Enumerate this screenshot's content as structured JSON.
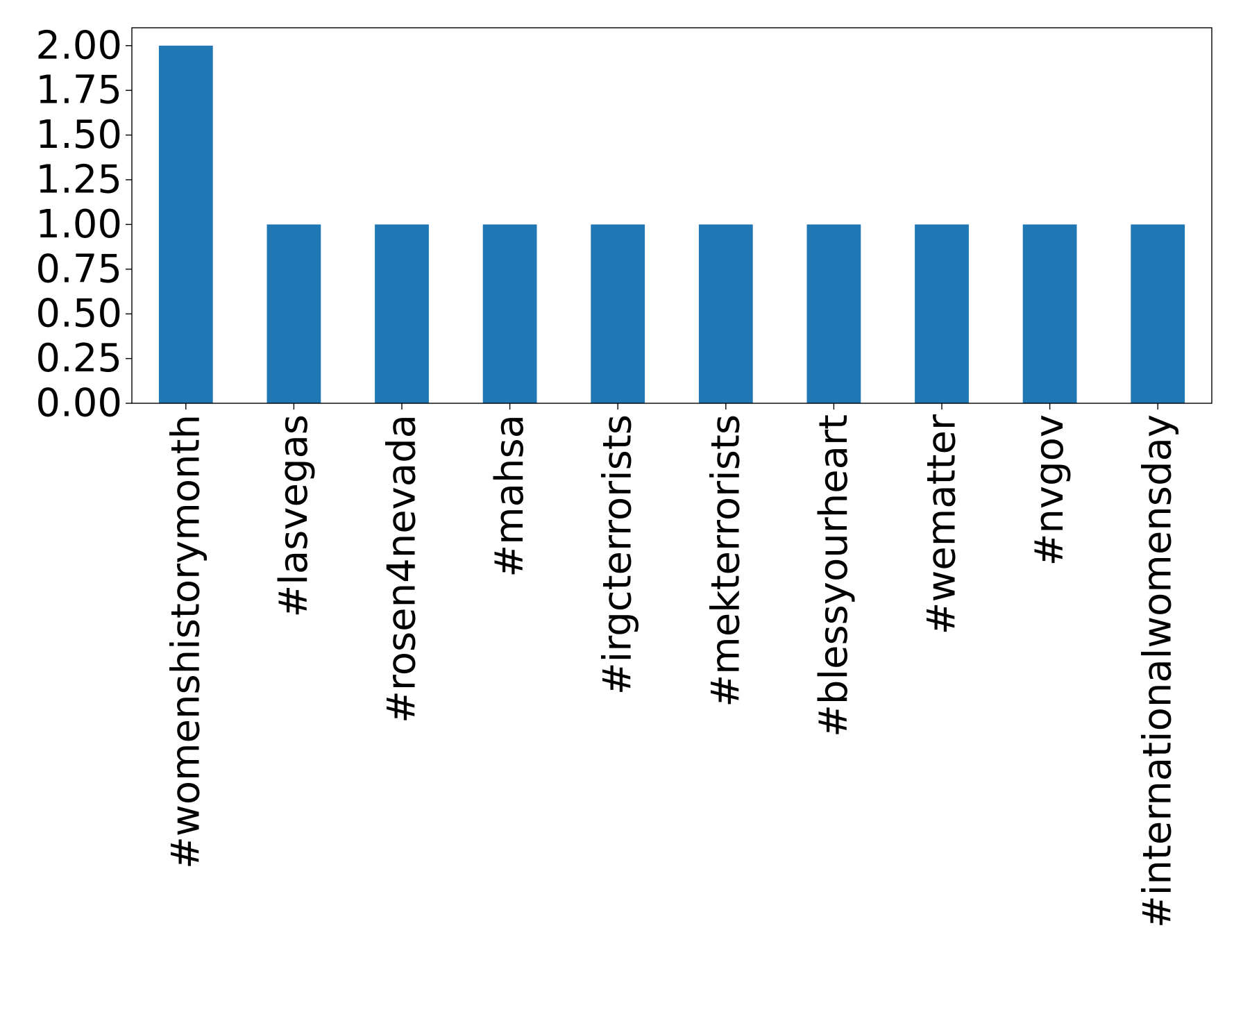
{
  "chart_data": {
    "type": "bar",
    "title": "",
    "xlabel": "",
    "ylabel": "",
    "categories": [
      "#womenshistorymonth",
      "#lasvegas",
      "#rosen4nevada",
      "#mahsa",
      "#irgcterrorists",
      "#mekterrorists",
      "#blessyourheart",
      "#wematter",
      "#nvgov",
      "#internationalwomensday"
    ],
    "values": [
      2,
      1,
      1,
      1,
      1,
      1,
      1,
      1,
      1,
      1
    ],
    "ylim": [
      0,
      2.1
    ],
    "yticks": [
      "0.00",
      "0.25",
      "0.50",
      "0.75",
      "1.00",
      "1.25",
      "1.50",
      "1.75",
      "2.00"
    ],
    "grid": false,
    "legend": "none",
    "bar_color": "#1f77b4",
    "axis_color": "#000000",
    "background": "#ffffff"
  }
}
